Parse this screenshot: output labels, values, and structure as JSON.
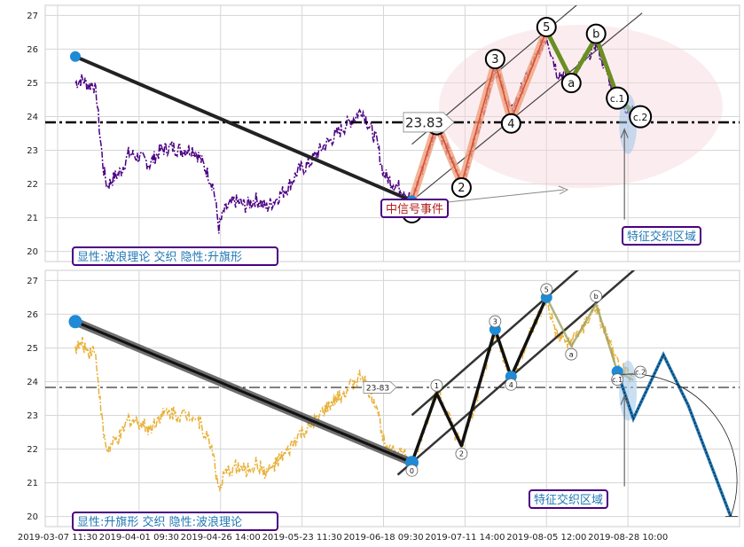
{
  "chart_data": [
    {
      "type": "line",
      "panel": "top",
      "ylim": [
        19.7,
        27.3
      ],
      "y_ticks": [
        "20",
        "21",
        "22",
        "23",
        "24",
        "25",
        "26",
        "27"
      ],
      "grid": true,
      "price_series_color": "#4b0082",
      "trend_line": {
        "from_idx": 10,
        "from_price": 25.78,
        "to_idx": 200,
        "to_price": 21.5
      },
      "level_line": {
        "price": 23.83,
        "label": "23.83"
      },
      "waves": [
        {
          "label": "0",
          "idx": 200,
          "price": 21.5
        },
        {
          "label": "1",
          "idx": 214,
          "price": 23.8
        },
        {
          "label": "2",
          "idx": 228,
          "price": 22.0
        },
        {
          "label": "3",
          "idx": 247,
          "price": 25.6
        },
        {
          "label": "4",
          "idx": 256,
          "price": 23.9
        },
        {
          "label": "5",
          "idx": 276,
          "price": 26.55
        },
        {
          "label": "a",
          "idx": 290,
          "price": 25.1
        },
        {
          "label": "b",
          "idx": 304,
          "price": 26.35
        },
        {
          "label": "c.1",
          "idx": 316,
          "price": 24.6
        },
        {
          "label": "c.2",
          "idx": 325,
          "price": 24.1
        }
      ],
      "annotation_signal": "中信号事件",
      "annotation_zone": "特征交织区域",
      "info_label": "显性:波浪理论 交织 隐性:升旗形"
    },
    {
      "type": "line",
      "panel": "bottom",
      "ylim": [
        19.7,
        27.3
      ],
      "y_ticks": [
        "20",
        "21",
        "22",
        "23",
        "24",
        "25",
        "26",
        "27"
      ],
      "grid": true,
      "price_series_color": "#e8b23a",
      "trend_line": {
        "from_idx": 10,
        "from_price": 25.78,
        "to_idx": 200,
        "to_price": 21.6
      },
      "level_line": {
        "price": 23.83,
        "label": "23-83"
      },
      "waves": [
        {
          "label": "0",
          "idx": 200,
          "price": 21.6
        },
        {
          "label": "1",
          "idx": 214,
          "price": 23.65
        },
        {
          "label": "2",
          "idx": 228,
          "price": 22.1
        },
        {
          "label": "3",
          "idx": 247,
          "price": 25.55
        },
        {
          "label": "4",
          "idx": 256,
          "price": 24.15
        },
        {
          "label": "5",
          "idx": 276,
          "price": 26.5
        },
        {
          "label": "a",
          "idx": 290,
          "price": 25.05
        },
        {
          "label": "b",
          "idx": 304,
          "price": 26.3
        },
        {
          "label": "c.1",
          "idx": 316,
          "price": 24.3
        },
        {
          "label": "c.2",
          "idx": 325,
          "price": 24.05
        }
      ],
      "projection": [
        {
          "idx": 316,
          "price": 24.3
        },
        {
          "idx": 325,
          "price": 22.9
        },
        {
          "idx": 342,
          "price": 24.8
        },
        {
          "idx": 356,
          "price": 23.3
        },
        {
          "idx": 380,
          "price": 20.0
        }
      ],
      "annotation_zone": "特征交织区域",
      "info_label": "显性:升旗形 交织 隐性:波浪理论"
    }
  ],
  "x_axis": {
    "ticks": [
      {
        "idx": 0,
        "label": "2019-03-07 11:30"
      },
      {
        "idx": 46,
        "label": "2019-04-01 09:30"
      },
      {
        "idx": 92,
        "label": "2019-04-26 14:00"
      },
      {
        "idx": 138,
        "label": "2019-05-23 11:30"
      },
      {
        "idx": 184,
        "label": "2019-06-18 09:30"
      },
      {
        "idx": 230,
        "label": "2019-07-11 14:00"
      },
      {
        "idx": 276,
        "label": "2019-08-05 12:00"
      },
      {
        "idx": 322,
        "label": "2019-08-28 10:00"
      }
    ],
    "range": [
      -7,
      385
    ]
  },
  "price_anchors": [
    [
      10,
      25.0
    ],
    [
      14,
      25.1
    ],
    [
      18,
      24.9
    ],
    [
      20,
      25.0
    ],
    [
      22,
      24.6
    ],
    [
      24,
      23.4
    ],
    [
      26,
      22.4
    ],
    [
      28,
      21.95
    ],
    [
      32,
      22.2
    ],
    [
      36,
      22.4
    ],
    [
      40,
      22.9
    ],
    [
      46,
      22.8
    ],
    [
      52,
      22.6
    ],
    [
      58,
      23.0
    ],
    [
      64,
      23.1
    ],
    [
      70,
      23.0
    ],
    [
      76,
      23.05
    ],
    [
      80,
      22.8
    ],
    [
      84,
      22.4
    ],
    [
      88,
      21.9
    ],
    [
      91,
      20.7
    ],
    [
      94,
      21.2
    ],
    [
      100,
      21.5
    ],
    [
      106,
      21.35
    ],
    [
      112,
      21.55
    ],
    [
      118,
      21.3
    ],
    [
      124,
      21.6
    ],
    [
      130,
      21.9
    ],
    [
      136,
      22.4
    ],
    [
      142,
      22.6
    ],
    [
      148,
      23.0
    ],
    [
      154,
      23.3
    ],
    [
      160,
      23.6
    ],
    [
      166,
      23.9
    ],
    [
      172,
      24.2
    ],
    [
      176,
      23.7
    ],
    [
      180,
      23.3
    ],
    [
      184,
      22.3
    ],
    [
      190,
      22.0
    ],
    [
      196,
      21.8
    ],
    [
      200,
      21.5
    ],
    [
      214,
      23.75
    ],
    [
      228,
      22.0
    ],
    [
      236,
      23.4
    ],
    [
      247,
      25.5
    ],
    [
      256,
      24.1
    ],
    [
      266,
      25.3
    ],
    [
      276,
      26.4
    ],
    [
      282,
      25.3
    ],
    [
      290,
      25.15
    ],
    [
      298,
      25.7
    ],
    [
      304,
      26.2
    ],
    [
      310,
      25.3
    ],
    [
      316,
      24.5
    ],
    [
      325,
      24.1
    ]
  ]
}
